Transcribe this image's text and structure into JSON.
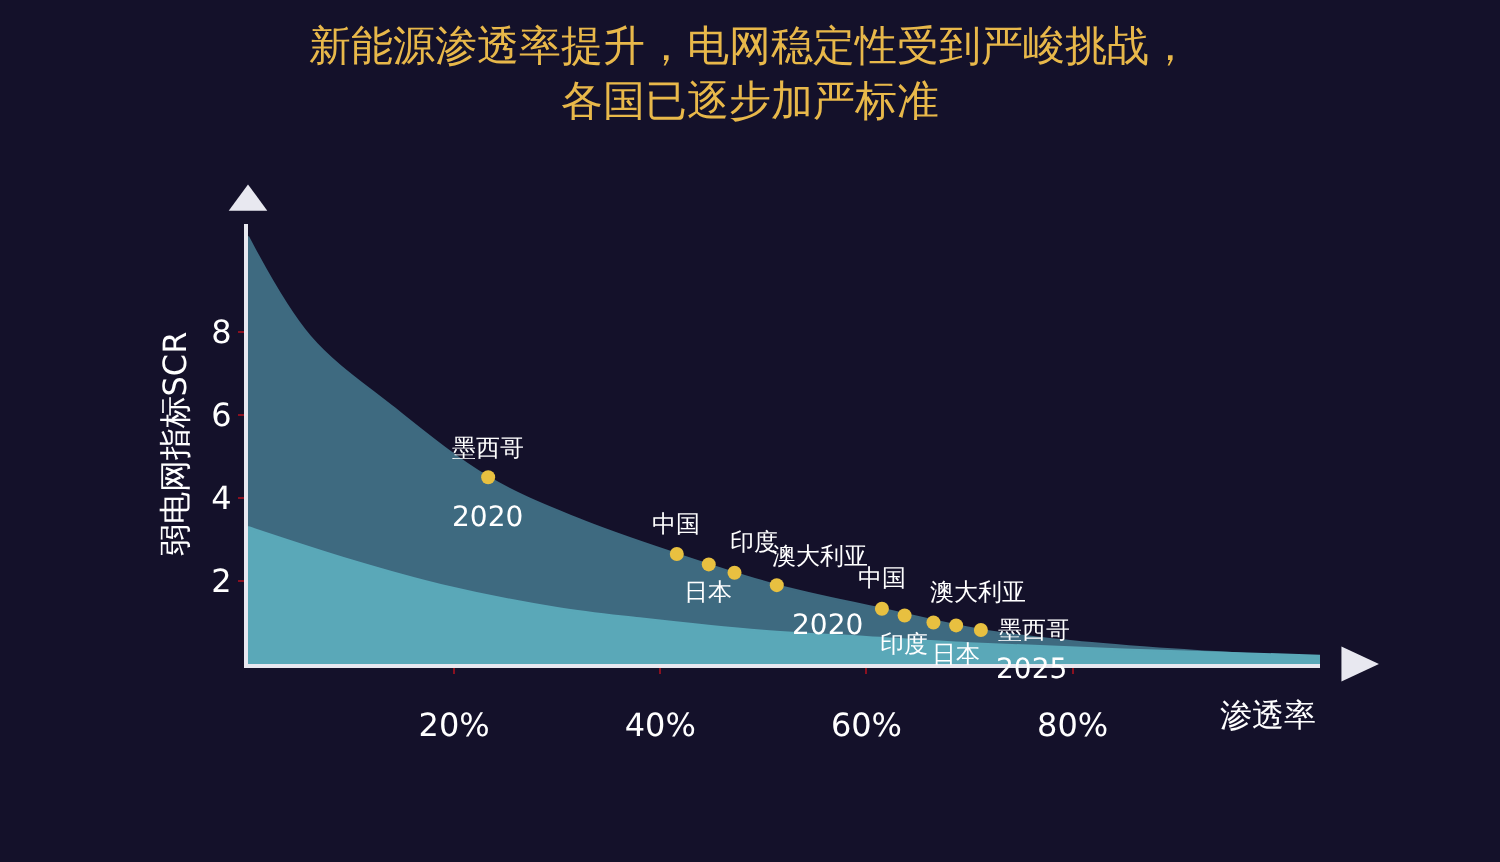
{
  "chart_data": {
    "type": "area",
    "title": "新能源渗透率提升，电网稳定性受到严峻挑战，",
    "subtitle": "各国已逐步加严标准",
    "xlabel": "渗透率",
    "ylabel": "弱电网指标SCR",
    "xlim": [
      0,
      104
    ],
    "ylim": [
      0,
      10.6
    ],
    "xticks": [
      {
        "value": 20,
        "label": "20%"
      },
      {
        "value": 40,
        "label": "40%"
      },
      {
        "value": 60,
        "label": "60%"
      },
      {
        "value": 80,
        "label": "80%"
      }
    ],
    "yticks": [
      2,
      4,
      6,
      8
    ],
    "grid": false,
    "series": [
      {
        "color": "#3e6a80",
        "x": [
          0,
          6,
          14,
          23.3,
          32,
          41.6,
          51.3,
          61.5,
          71.1,
          80,
          90,
          100,
          104
        ],
        "values": [
          10.3,
          7.9,
          6.2,
          4.5,
          3.5,
          2.65,
          1.9,
          1.33,
          0.82,
          0.55,
          0.35,
          0.2,
          0.15
        ]
      },
      {
        "color": "#5aa8b8",
        "x": [
          0,
          10,
          18.8,
          30,
          38,
          50,
          60,
          70,
          85,
          104
        ],
        "values": [
          3.3,
          2.5,
          1.9,
          1.35,
          1.1,
          0.8,
          0.65,
          0.5,
          0.35,
          0.2
        ]
      },
      {
        "type": "scatter",
        "name": "2020",
        "color": "#e8c040",
        "marker": "circle",
        "x": [
          23.3
        ],
        "values": [
          4.5
        ]
      },
      {
        "type": "scatter",
        "name": "2020",
        "color": "#e8c040",
        "marker": "circle",
        "x": [
          41.6,
          44.7,
          47.2,
          51.3
        ],
        "values": [
          2.65,
          2.4,
          2.2,
          1.9
        ]
      },
      {
        "type": "scatter",
        "name": "2025",
        "color": "#e8c040",
        "marker": "circle",
        "x": [
          61.5,
          63.7,
          66.5,
          68.7,
          71.1
        ],
        "values": [
          1.33,
          1.17,
          1.0,
          0.93,
          0.82
        ]
      }
    ],
    "annotations": [
      {
        "text": "墨西哥",
        "x": 23.3,
        "y": 4.5
      },
      {
        "text": "中国",
        "x": 41.6,
        "y": 2.65
      },
      {
        "text": "日本",
        "x": 44.7,
        "y": 2.4
      },
      {
        "text": "印度",
        "x": 47.2,
        "y": 2.2
      },
      {
        "text": "澳大利亚",
        "x": 51.3,
        "y": 1.9
      },
      {
        "text": "中国",
        "x": 61.5,
        "y": 1.33
      },
      {
        "text": "印度",
        "x": 63.7,
        "y": 1.17
      },
      {
        "text": "澳大利亚",
        "x": 66.5,
        "y": 1.0
      },
      {
        "text": "日本",
        "x": 68.7,
        "y": 0.93
      },
      {
        "text": "墨西哥",
        "x": 71.1,
        "y": 0.82
      }
    ]
  }
}
